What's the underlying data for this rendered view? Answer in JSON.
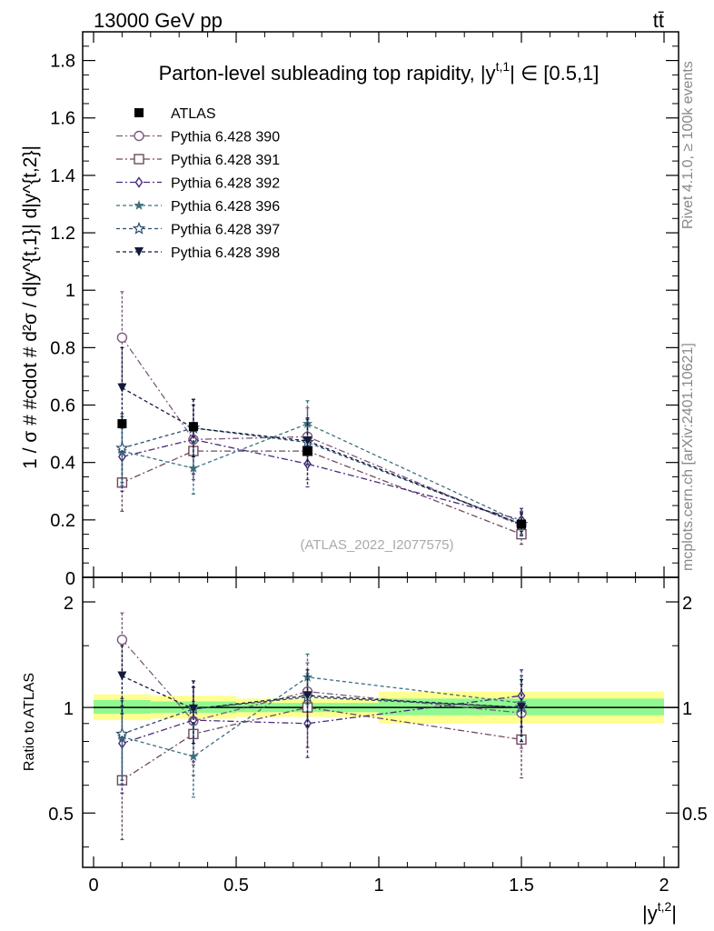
{
  "header": {
    "energy_label": "13000 GeV pp",
    "process_label": "tt̄"
  },
  "side_labels": {
    "rivet": "Rivet 4.1.0, ≥ 100k events",
    "mcplots": "mcplots.cern.ch [arXiv:2401.10621]"
  },
  "watermark": "(ATLAS_2022_I2077575)",
  "colors": {
    "ATLAS": "#000000",
    "p390": "#7e5a7e",
    "p391": "#6e4a5e",
    "p392": "#4a2a7a",
    "p396": "#3e6e7e",
    "p397": "#2e4e6e",
    "p398": "#141a3a",
    "band_inner": "#90f890",
    "band_outer": "#ffff90"
  },
  "chart_data": [
    {
      "panel": "main",
      "type": "scatter",
      "title": "Parton-level subleading top rapidity, |y^{t,1}| ∈ [0.5,1]",
      "title_text": "Parton-level subleading top rapidity, |y",
      "title_sup": "t,1",
      "title_tail": "| ∈ [0.5,1]",
      "ylabel": "1 / σ # #cdot # d²σ / d|y^{t,1}| d|y^{t,2}|",
      "ylabel_text": "1 / σ # #cdot # d²σ / d|y^{t,1}| d|y^{t,2}|",
      "xlim": [
        0,
        2
      ],
      "ylim": [
        0,
        1.9
      ],
      "yticks": [
        0.2,
        0.4,
        0.6,
        0.8,
        1,
        1.2,
        1.4,
        1.6,
        1.8
      ],
      "ytick_labels": [
        "0.2",
        "0.4",
        "0.6",
        "0.8",
        "1",
        "1.2",
        "1.4",
        "1.6",
        "1.8"
      ],
      "y_zero_label": "0",
      "x": [
        0.1,
        0.35,
        0.75,
        1.5
      ],
      "series": [
        {
          "name": "ATLAS",
          "key": "ATLAS",
          "marker": "filled-square",
          "values": [
            0.535,
            0.525,
            0.44,
            0.185
          ],
          "errors": [
            0.01,
            0.01,
            0.01,
            0.005
          ]
        },
        {
          "name": "Pythia 6.428 390",
          "key": "p390",
          "marker": "open-circle",
          "values": [
            0.835,
            0.48,
            0.49,
            0.18
          ],
          "errors": [
            0.16,
            0.12,
            0.1,
            0.04
          ]
        },
        {
          "name": "Pythia 6.428 391",
          "key": "p391",
          "marker": "open-square",
          "values": [
            0.33,
            0.44,
            0.44,
            0.15
          ],
          "errors": [
            0.1,
            0.1,
            0.1,
            0.035
          ]
        },
        {
          "name": "Pythia 6.428 392",
          "key": "p392",
          "marker": "open-diamond",
          "values": [
            0.42,
            0.48,
            0.395,
            0.2
          ],
          "errors": [
            0.12,
            0.12,
            0.08,
            0.04
          ]
        },
        {
          "name": "Pythia 6.428 396",
          "key": "p396",
          "marker": "filled-star",
          "values": [
            0.44,
            0.38,
            0.535,
            0.19
          ],
          "errors": [
            0.12,
            0.09,
            0.08,
            0.04
          ]
        },
        {
          "name": "Pythia 6.428 397",
          "key": "p397",
          "marker": "open-star",
          "values": [
            0.45,
            0.52,
            0.47,
            0.185
          ],
          "errors": [
            0.12,
            0.1,
            0.08,
            0.04
          ]
        },
        {
          "name": "Pythia 6.428 398",
          "key": "p398",
          "marker": "filled-triangle-down",
          "values": [
            0.66,
            0.52,
            0.475,
            0.185
          ],
          "errors": [
            0.14,
            0.1,
            0.08,
            0.04
          ]
        }
      ]
    },
    {
      "panel": "ratio",
      "type": "scatter",
      "ylabel": "Ratio to ATLAS",
      "xlabel": "|y^{t,2}|",
      "xlabel_text": "|y",
      "xlabel_sup": "t,2",
      "xlabel_tail": "|",
      "xlim": [
        0,
        2
      ],
      "ylim": [
        0.35,
        2.35
      ],
      "xticks": [
        0,
        0.5,
        1,
        1.5,
        2
      ],
      "xtick_labels": [
        "0",
        "0.5",
        "1",
        "1.5",
        "2"
      ],
      "yticks": [
        0.5,
        1,
        2
      ],
      "ytick_labels": [
        "0.5",
        "1",
        "2"
      ],
      "bands": [
        {
          "xmin": 0,
          "xmax": 0.2,
          "inner": [
            0.96,
            1.05
          ],
          "outer": [
            0.92,
            1.09
          ]
        },
        {
          "xmin": 0.2,
          "xmax": 0.5,
          "inner": [
            0.965,
            1.04
          ],
          "outer": [
            0.93,
            1.08
          ]
        },
        {
          "xmin": 0.5,
          "xmax": 1.0,
          "inner": [
            0.97,
            1.03
          ],
          "outer": [
            0.94,
            1.06
          ]
        },
        {
          "xmin": 1.0,
          "xmax": 2.0,
          "inner": [
            0.95,
            1.06
          ],
          "outer": [
            0.9,
            1.11
          ]
        }
      ],
      "x": [
        0.1,
        0.35,
        0.75,
        1.5
      ],
      "series": [
        {
          "name": "Pythia 6.428 390",
          "key": "p390",
          "marker": "open-circle",
          "values": [
            1.56,
            0.915,
            1.11,
            0.965
          ],
          "errors": [
            0.3,
            0.23,
            0.23,
            0.2
          ]
        },
        {
          "name": "Pythia 6.428 391",
          "key": "p391",
          "marker": "open-square",
          "values": [
            0.62,
            0.84,
            1.0,
            0.81
          ],
          "errors": [
            0.2,
            0.2,
            0.23,
            0.18
          ]
        },
        {
          "name": "Pythia 6.428 392",
          "key": "p392",
          "marker": "open-diamond",
          "values": [
            0.79,
            0.92,
            0.9,
            1.08
          ],
          "errors": [
            0.22,
            0.22,
            0.18,
            0.2
          ]
        },
        {
          "name": "Pythia 6.428 396",
          "key": "p396",
          "marker": "filled-star",
          "values": [
            0.825,
            0.725,
            1.22,
            1.03
          ],
          "errors": [
            0.22,
            0.17,
            0.2,
            0.2
          ]
        },
        {
          "name": "Pythia 6.428 397",
          "key": "p397",
          "marker": "open-star",
          "values": [
            0.84,
            0.99,
            1.07,
            1.0
          ],
          "errors": [
            0.22,
            0.2,
            0.18,
            0.2
          ]
        },
        {
          "name": "Pythia 6.428 398",
          "key": "p398",
          "marker": "filled-triangle-down",
          "values": [
            1.23,
            0.99,
            1.08,
            1.0
          ],
          "errors": [
            0.27,
            0.2,
            0.2,
            0.2
          ]
        }
      ]
    }
  ]
}
